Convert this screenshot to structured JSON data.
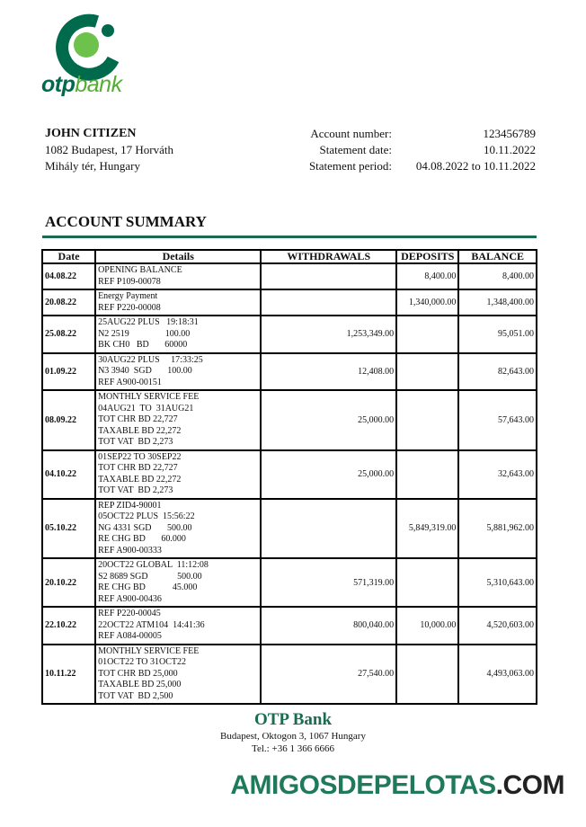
{
  "brand": {
    "logo_otp": "otp",
    "logo_bank": "bank",
    "colors": {
      "dark_green": "#006a4d",
      "light_green": "#6cc24a"
    }
  },
  "customer": {
    "name": "JOHN CITIZEN",
    "address_line1": "1082 Budapest, 17 Horváth",
    "address_line2": "Mihály tér, Hungary"
  },
  "account": {
    "number_label": "Account number:",
    "number": "123456789",
    "date_label": "Statement date:",
    "date": "10.11.2022",
    "period_label": "Statement period:",
    "period": "04.08.2022 to 10.11.2022"
  },
  "section_title": "ACCOUNT SUMMARY",
  "table": {
    "headers": [
      "Date",
      "Details",
      "WITHDRAWALS",
      "DEPOSITS",
      "BALANCE"
    ],
    "rows": [
      {
        "date": "04.08.22",
        "details": [
          "OPENING BALANCE",
          "REF P109-00078"
        ],
        "withdrawal": "",
        "deposit": "8,400.00",
        "balance": "8,400.00"
      },
      {
        "date": "20.08.22",
        "details": [
          "Energy Payment",
          "REF P220-00008"
        ],
        "withdrawal": "",
        "deposit": "1,340,000.00",
        "balance": "1,348,400.00"
      },
      {
        "date": "25.08.22",
        "details": [
          "25AUG22 PLUS   19:18:31",
          "N2 2519                100.00",
          "BK CH0   BD       60000"
        ],
        "withdrawal": "1,253,349.00",
        "deposit": "",
        "balance": "95,051.00"
      },
      {
        "date": "01.09.22",
        "details": [
          "30AUG22 PLUS     17:33:25",
          "N3 3940  SGD       100.00",
          "REF A900-00151"
        ],
        "withdrawal": "12,408.00",
        "deposit": "",
        "balance": "82,643.00"
      },
      {
        "date": "08.09.22",
        "details": [
          "MONTHLY SERVICE FEE",
          "04AUG21  TO  31AUG21",
          "TOT CHR BD 22,727",
          "TAXABLE BD 22,272",
          "TOT VAT  BD 2,273"
        ],
        "withdrawal": "25,000.00",
        "deposit": "",
        "balance": "57,643.00"
      },
      {
        "date": "04.10.22",
        "details": [
          "01SEP22 TO 30SEP22",
          "TOT CHR BD 22,727",
          "TAXABLE BD 22,272",
          "TOT VAT  BD 2,273"
        ],
        "withdrawal": "25,000.00",
        "deposit": "",
        "balance": "32,643.00"
      },
      {
        "date": "05.10.22",
        "details": [
          "REP ZID4-90001",
          "05OCT22 PLUS  15:56:22",
          "NG 4331 SGD       500.00",
          "RE CHG BD       60.000",
          "REF A900-00333"
        ],
        "withdrawal": "",
        "deposit": "5,849,319.00",
        "balance": "5,881,962.00"
      },
      {
        "date": "20.10.22",
        "details": [
          "20OCT22 GLOBAL  11:12:08",
          "S2 8689 SGD             500.00",
          "RE CHG BD            45.000",
          "REF A900-00436"
        ],
        "withdrawal": "571,319.00",
        "deposit": "",
        "balance": "5,310,643.00"
      },
      {
        "date": "22.10.22",
        "details": [
          "REF P220-00045",
          "22OCT22 ATM104  14:41:36",
          "REF A084-00005"
        ],
        "withdrawal": "800,040.00",
        "deposit": "10,000.00",
        "balance": "4,520,603.00"
      },
      {
        "date": "10.11.22",
        "details": [
          "MONTHLY SERVICE FEE",
          "01OCT22 TO 31OCT22",
          "TOT CHR BD 25,000",
          "TAXABLE BD 25,000",
          "TOT VAT  BD 2,500"
        ],
        "withdrawal": "27,540.00",
        "deposit": "",
        "balance": "4,493,063.00"
      }
    ]
  },
  "footer": {
    "bank": "OTP Bank",
    "address": "Budapest, Oktogon 3, 1067 Hungary",
    "phone": "Tel.: +36 1 366 6666"
  },
  "watermark": {
    "part1": "AMIGOSDEPELOTAS",
    "part2": ".COM"
  }
}
